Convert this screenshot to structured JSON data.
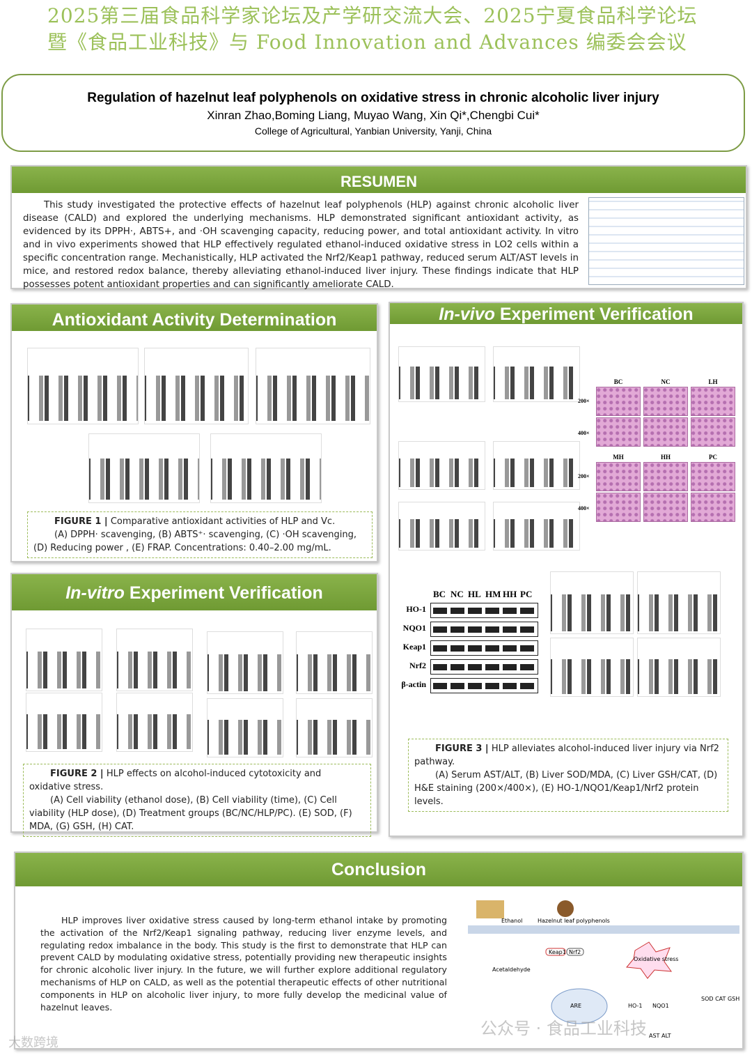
{
  "header": {
    "conference": "2025第三届食品科学家论坛及产学研交流大会、2025宁夏食品科学论坛暨《食品工业科技》与 Food Innovation and Advances 编委会会议",
    "title": "Regulation of hazelnut leaf polyphenols on oxidative stress in chronic alcoholic liver injury",
    "authors": "Xinran Zhao,Boming Liang, Muyao Wang, Xin Qi*,Chengbi Cui*",
    "affiliation": "College of Agricultural, Yanbian University, Yanji, China"
  },
  "abstract": {
    "heading": "RESUMEN",
    "text": "This study investigated the protective effects of hazelnut leaf polyphenols (HLP) against chronic alcoholic liver disease (CALD) and explored the underlying mechanisms. HLP demonstrated significant antioxidant activity, as evidenced by its DPPH·, ABTS+, and ·OH scavenging capacity, reducing power, and total antioxidant activity. In vitro and in vivo experiments showed that HLP effectively regulated ethanol-induced oxidative stress in LO2 cells within a specific concentration range. Mechanistically, HLP activated the Nrf2/Keap1 pathway, reduced serum ALT/AST levels in mice, and restored redox balance, thereby alleviating ethanol-induced liver injury. These findings indicate that HLP possesses potent antioxidant properties and can significantly ameliorate CALD."
  },
  "antioxidant": {
    "heading": "Antioxidant Activity Determination",
    "caption_label": "FIGURE 1 |",
    "caption_title": "Comparative antioxidant activities of HLP and Vc.",
    "caption_text": "(A) DPPH· scavenging, (B) ABTS⁺· scavenging, (C) ·OH scavenging, (D) Reducing power , (E) FRAP. Concentrations: 0.40–2.00 mg/mL."
  },
  "in_vitro": {
    "heading_italic": "In-vitro",
    "heading_rest": "Experiment Verification",
    "caption_label": "FIGURE 2 |",
    "caption_title": "HLP effects on alcohol-induced cytotoxicity and oxidative stress.",
    "caption_text": "(A) Cell viability (ethanol dose), (B) Cell viability (time), (C) Cell viability (HLP dose), (D) Treatment groups (BC/NC/HLP/PC). (E) SOD, (F) MDA, (G) GSH, (H) CAT."
  },
  "in_vivo": {
    "heading_italic": "In-vivo",
    "heading_rest": "Experiment Verification",
    "histo_groups": [
      "BC",
      "NC",
      "LH",
      "MH",
      "HH",
      "PC"
    ],
    "magnifications": [
      "200×",
      "400×"
    ],
    "blot_groups": [
      "BC",
      "NC",
      "HL",
      "HM",
      "HH",
      "PC"
    ],
    "proteins": [
      "HO-1",
      "NQO1",
      "Keap1",
      "Nrf2",
      "β-actin"
    ],
    "caption_label": "FIGURE 3 |",
    "caption_title": "HLP alleviates alcohol-induced liver injury via Nrf2 pathway.",
    "caption_text": "(A) Serum AST/ALT, (B) Liver SOD/MDA, (C) Liver GSH/CAT, (D) H&E staining (200×/400×), (E) HO-1/NQO1/Keap1/Nrf2 protein levels."
  },
  "conclusion": {
    "heading": "Conclusion",
    "text": "HLP improves liver oxidative stress caused by long-term ethanol intake by promoting the activation of the Nrf2/Keap1 signaling pathway, reducing liver enzyme levels, and regulating redox imbalance in the body. This study is the first to demonstrate that HLP can prevent CALD by modulating oxidative stress, potentially providing new therapeutic insights for chronic alcoholic liver injury. In the future, we will further explore additional regulatory mechanisms of HLP on CALD, as well as the potential therapeutic effects of other nutritional components in HLP on alcoholic liver injury, to more fully develop the medicinal value of hazelnut leaves.",
    "diagram": {
      "ethanol": "Ethanol",
      "hlp": "Hazelnut leaf polyphenols",
      "acetaldehyde": "Acetaldehyde",
      "stress": "Oxidative stress",
      "keap1": "Keap1",
      "nrf2": "Nrf2",
      "are": "ARE",
      "ho1": "HO-1",
      "nqo1": "NQO1",
      "markers": "SOD CAT GSH MDA",
      "enzymes": "AST ALT"
    }
  },
  "watermarks": [
    "公众号 · 食品工业科技",
    "大数跨境"
  ]
}
